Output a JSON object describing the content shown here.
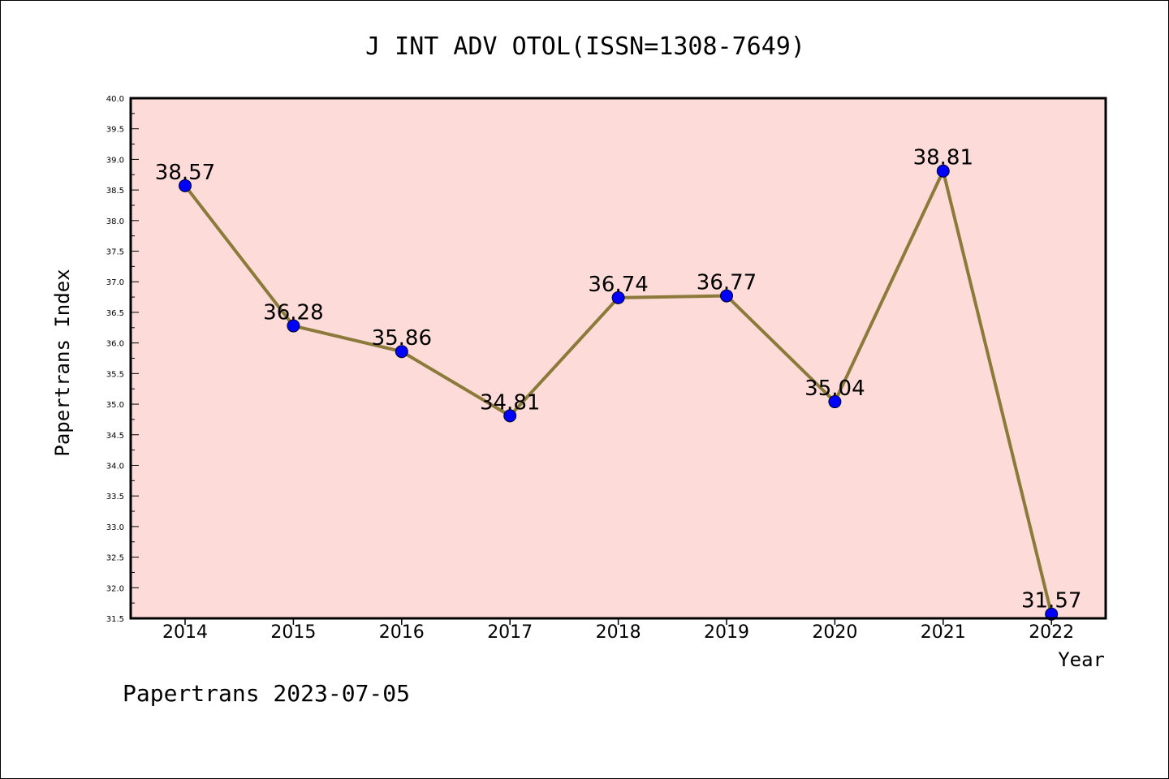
{
  "chart_data": {
    "type": "line",
    "title": "J INT ADV OTOL(ISSN=1308-7649)",
    "xlabel": "Year",
    "ylabel": "Papertrans Index",
    "categories": [
      "2014",
      "2015",
      "2016",
      "2017",
      "2018",
      "2019",
      "2020",
      "2021",
      "2022"
    ],
    "series": [
      {
        "values": [
          38.57,
          36.28,
          35.86,
          34.81,
          36.74,
          36.77,
          35.04,
          38.81,
          31.57
        ],
        "labels": [
          "38.57",
          "36.28",
          "35.86",
          "34.81",
          "36.74",
          "36.77",
          "35.04",
          "38.81",
          "31.57"
        ]
      }
    ],
    "ylim": [
      31.5,
      40.0
    ],
    "yticks": [
      "31.5",
      "32.0",
      "32.5",
      "33.0",
      "33.5",
      "34.0",
      "34.5",
      "35.0",
      "35.5",
      "36.0",
      "36.5",
      "37.0",
      "37.5",
      "38.0",
      "38.5",
      "39.0",
      "39.5",
      "40.0"
    ],
    "grid": false,
    "colors": {
      "plot_background": "#fddbd8",
      "line": "#8b7a3a",
      "marker": "#0000ff"
    }
  },
  "footer": "Papertrans 2023-07-05"
}
